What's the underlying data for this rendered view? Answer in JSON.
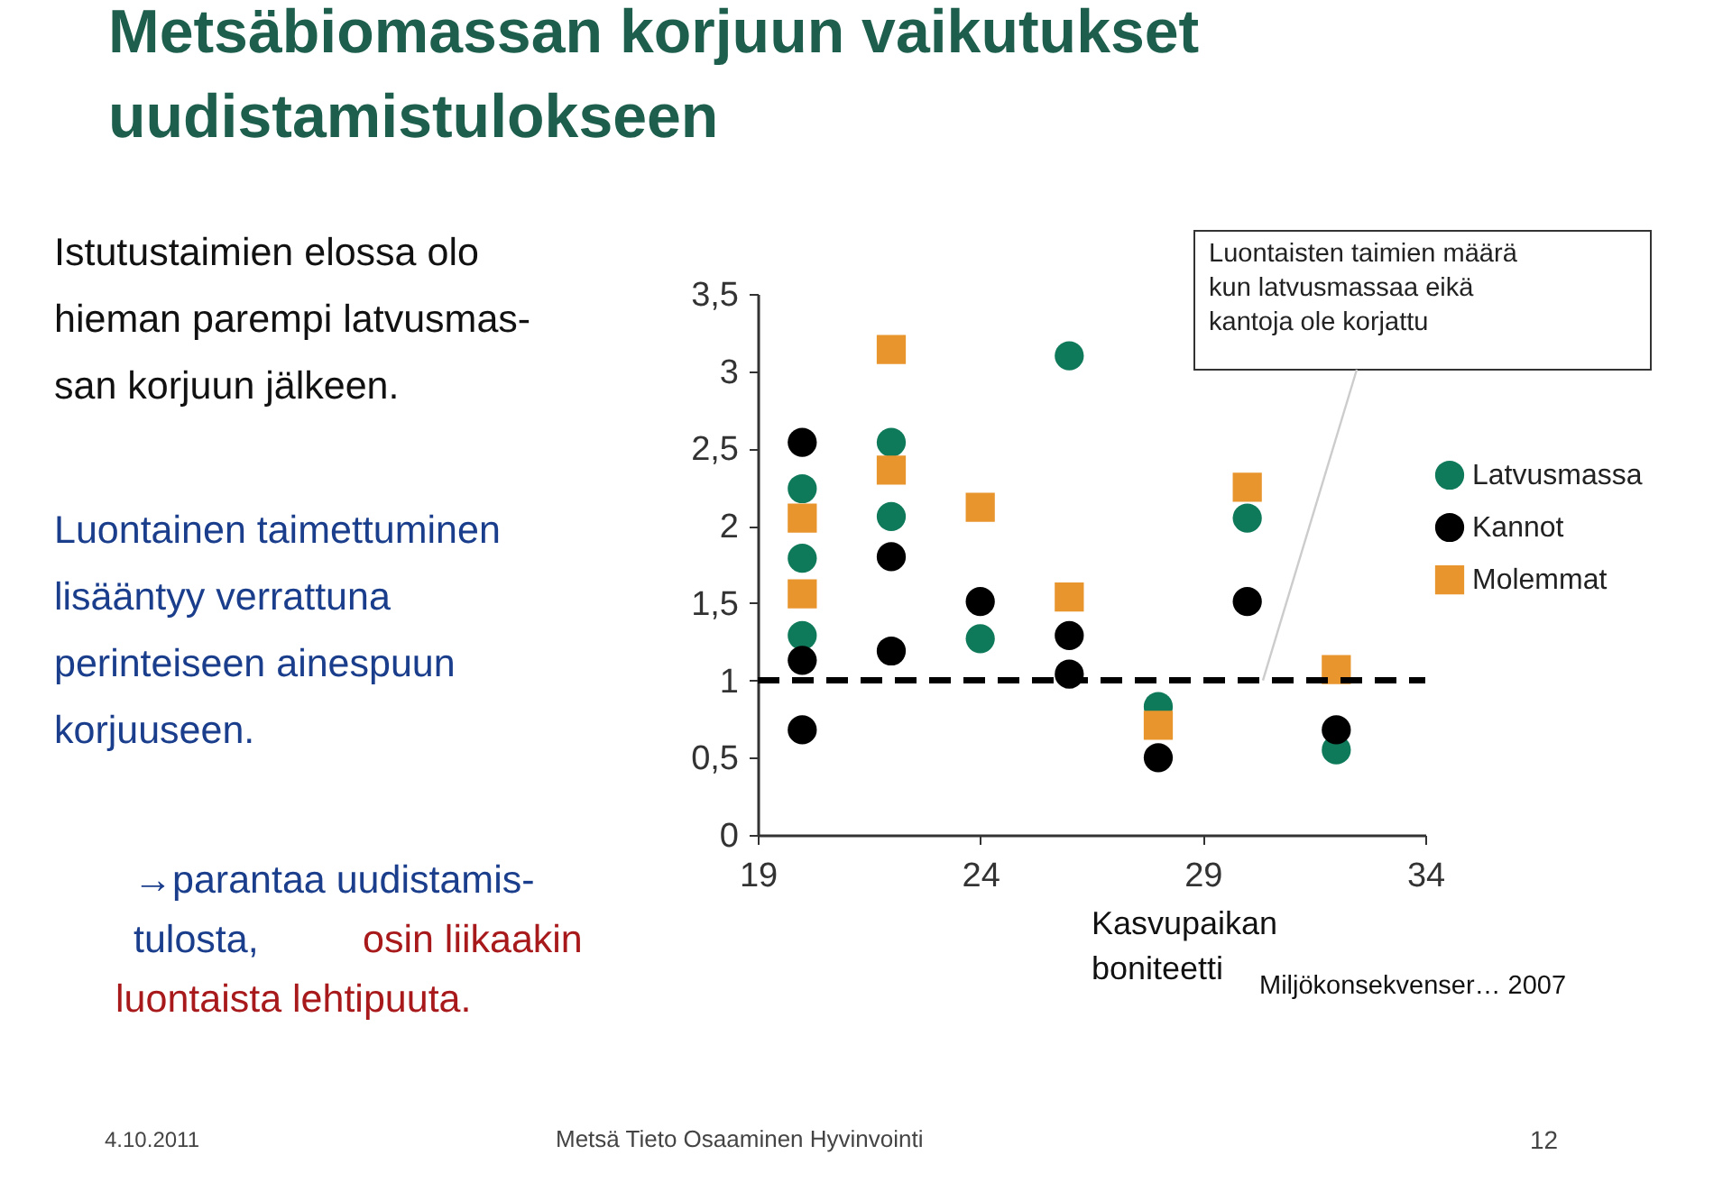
{
  "chart_data": {
    "type": "scatter",
    "title": "Metsäbiomassan korjuun vaikutukset\nuudistamistulokseen",
    "xlabel": "Kasvupaikan\nboniteetti",
    "xlim": [
      19,
      34
    ],
    "xticks": [
      19,
      24,
      29,
      34
    ],
    "ylim": [
      0,
      3.5
    ],
    "yticks": [
      0,
      {
        "value": 0.5,
        "label": "0,5"
      },
      1,
      {
        "value": 1.5,
        "label": "1,5"
      },
      2,
      {
        "value": 2.5,
        "label": "2,5"
      },
      3,
      {
        "value": 3.5,
        "label": "3,5"
      }
    ],
    "grid": false,
    "legend": "right",
    "series": [
      {
        "name": "Latvusmassa",
        "color": "#0f7a5a",
        "marker": "circle",
        "x": [
          20,
          20,
          20,
          22,
          22,
          24,
          26,
          28,
          30,
          32
        ],
        "values": [
          2.24,
          1.79,
          1.29,
          2.54,
          2.06,
          1.27,
          3.1,
          0.83,
          2.05,
          0.55
        ]
      },
      {
        "name": "Kannot",
        "color": "#000000",
        "marker": "circle",
        "x": [
          20,
          20,
          20,
          22,
          22,
          24,
          26,
          26,
          28,
          30,
          32
        ],
        "values": [
          2.54,
          1.13,
          0.68,
          1.8,
          1.19,
          1.51,
          1.29,
          1.04,
          0.5,
          1.51,
          0.68
        ]
      },
      {
        "name": "Molemmat",
        "color": "#e8952e",
        "marker": "square",
        "x": [
          20,
          20,
          22,
          22,
          24,
          26,
          28,
          30,
          32
        ],
        "values": [
          2.05,
          1.56,
          3.14,
          2.36,
          2.12,
          1.54,
          0.71,
          2.25,
          1.07
        ]
      }
    ],
    "ref_lines": [
      {
        "axis": "y",
        "value": 1,
        "label": "Luontaisten taimien määrä\nkun latvusmassaa eikä\nkantoja ole korjattu",
        "color": "#000000",
        "line_style": "dashed"
      }
    ],
    "annotations": [
      "Istutustaimien elossa olo\nhieman parempi latvusmas-\nsan korjuun jälkeen.",
      "Luontainen taimettuminen\nlisääntyy verrattuna\nperinteiseen ainespuun\nkorjuuseen.",
      "→parantaa uudistamis-\ntulosta,",
      "osin liikaakin",
      "luontaista lehtipuuta.",
      "Miljökonsekvenser… 2007",
      "4.10.2011",
      "Metsä   Tieto   Osaaminen   Hyvinvointi",
      "12"
    ]
  }
}
